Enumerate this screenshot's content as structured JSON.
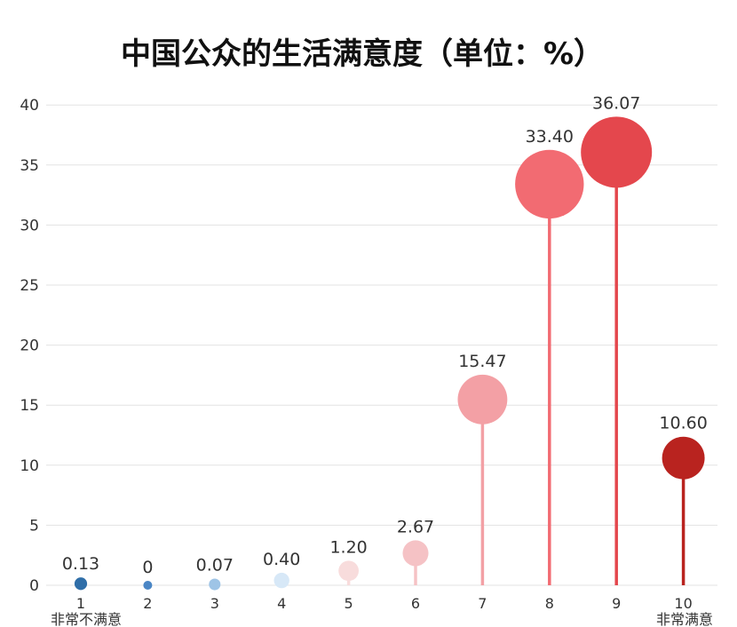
{
  "chart_data": {
    "type": "lollipop",
    "title": "中国公众的生活满意度（单位：%）",
    "categories": [
      "1",
      "2",
      "3",
      "4",
      "5",
      "6",
      "7",
      "8",
      "9",
      "10"
    ],
    "values": [
      0.13,
      0,
      0.07,
      0.4,
      1.2,
      2.67,
      15.47,
      33.4,
      36.07,
      10.6
    ],
    "value_labels": [
      "0.13",
      "0",
      "0.07",
      "0.40",
      "1.20",
      "2.67",
      "15.47",
      "33.40",
      "36.07",
      "10.60"
    ],
    "colors": [
      "#2f6ea8",
      "#4a86c5",
      "#9ec4e6",
      "#d7e8f7",
      "#f8dcdc",
      "#f5c2c5",
      "#f3a0a5",
      "#f26b72",
      "#e4474d",
      "#b9231f"
    ],
    "yticks": [
      0,
      5,
      10,
      15,
      20,
      25,
      30,
      35,
      40
    ],
    "ylim": [
      0,
      40
    ],
    "end_labels": {
      "left": "非常不满意",
      "right": "非常满意"
    },
    "grid": true
  }
}
